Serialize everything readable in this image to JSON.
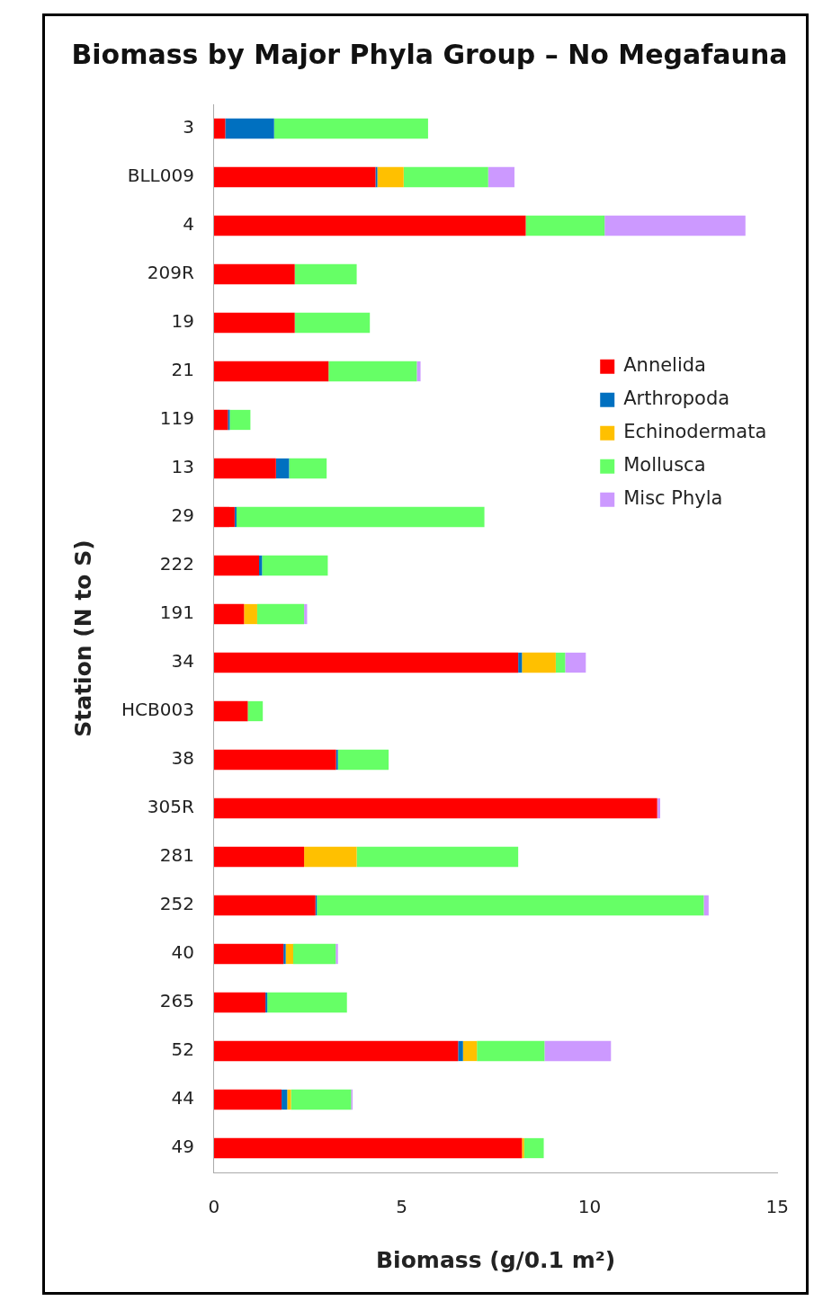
{
  "chart_data": {
    "type": "bar",
    "orientation": "horizontal",
    "stacked": true,
    "title": "Biomass by Major Phyla Group – No Megafauna",
    "xlabel": "Biomass (g/0.1 m²)",
    "ylabel": "Station (N to S)",
    "categories": [
      "3",
      "BLL009",
      "4",
      "209R",
      "19",
      "21",
      "119",
      "13",
      "29",
      "222",
      "191",
      "34",
      "HCB003",
      "38",
      "305R",
      "281",
      "252",
      "40",
      "265",
      "52",
      "44",
      "49"
    ],
    "series": [
      {
        "name": "Annelida",
        "color": "#ff0000",
        "values": [
          0.3,
          4.3,
          8.3,
          2.15,
          2.15,
          3.05,
          0.37,
          1.65,
          0.55,
          1.2,
          0.8,
          8.1,
          0.9,
          3.25,
          11.8,
          2.4,
          2.7,
          1.85,
          1.37,
          6.5,
          1.8,
          8.2
        ]
      },
      {
        "name": "Arthropoda",
        "color": "#0070c0",
        "values": [
          1.3,
          0.05,
          0,
          0,
          0,
          0,
          0.05,
          0.35,
          0.05,
          0.08,
          0,
          0.1,
          0,
          0.05,
          0,
          0,
          0.04,
          0.06,
          0.05,
          0.13,
          0.15,
          0
        ]
      },
      {
        "name": "Echinodermata",
        "color": "#ffc000",
        "values": [
          0,
          0.7,
          0,
          0,
          0,
          0,
          0,
          0,
          0,
          0,
          0.35,
          0.9,
          0,
          0,
          0,
          1.4,
          0,
          0.2,
          0,
          0.37,
          0.1,
          0.06
        ]
      },
      {
        "name": "Mollusca",
        "color": "#66ff66",
        "values": [
          4.1,
          2.25,
          2.1,
          1.65,
          2.0,
          2.35,
          0.55,
          1.0,
          6.6,
          1.75,
          1.25,
          0.25,
          0.4,
          1.35,
          0,
          4.3,
          10.3,
          1.13,
          2.12,
          1.8,
          1.6,
          0.52
        ]
      },
      {
        "name": "Misc Phyla",
        "color": "#cc99ff",
        "values": [
          0,
          0.7,
          3.75,
          0,
          0,
          0.1,
          0,
          0,
          0,
          0,
          0.08,
          0.55,
          0,
          0,
          0.08,
          0,
          0.13,
          0.06,
          0,
          1.77,
          0.04,
          0
        ]
      }
    ],
    "xlim": [
      0,
      15
    ],
    "xticks": [
      0,
      5,
      10,
      15
    ],
    "legend": "right",
    "grid": false
  }
}
